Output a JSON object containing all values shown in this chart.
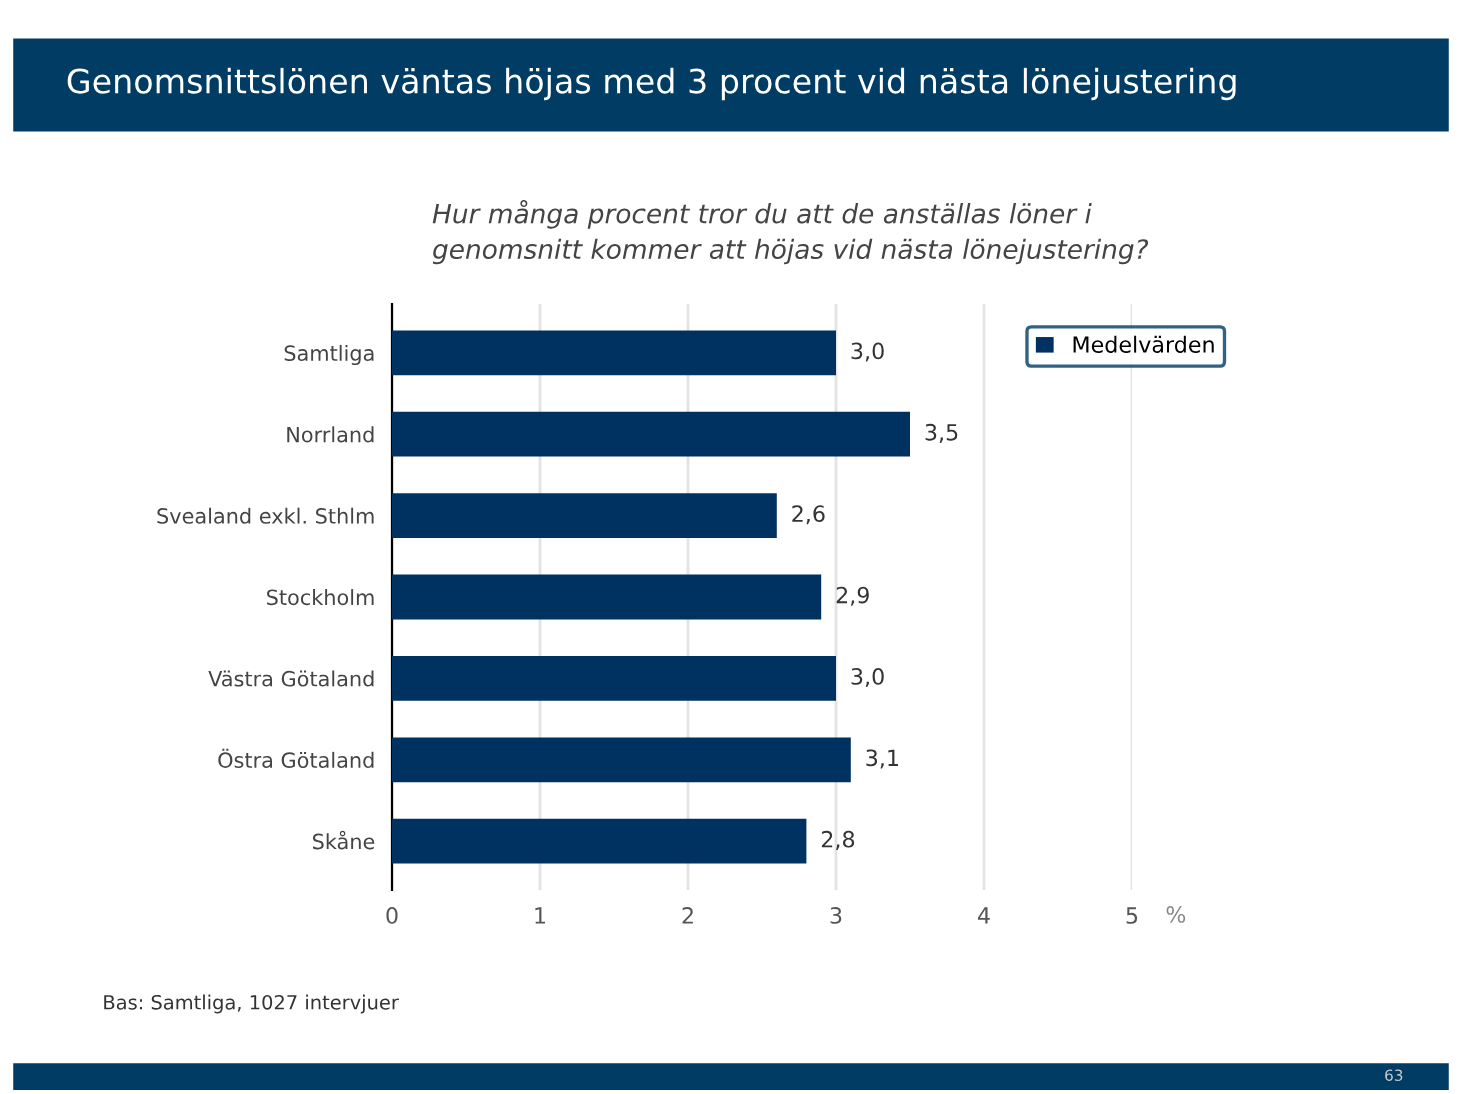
{
  "chart_data": {
    "type": "bar",
    "orientation": "horizontal",
    "title": "Genomsnittslönen väntas höjas med 3 procent vid nästa lönejustering",
    "subtitle": "Hur många procent tror du att de anställas löner i\ngenomsnitt kommer att höjas vid nästa lönejustering?",
    "categories": [
      "Samtliga",
      "Norrland",
      "Svealand exkl. Sthlm",
      "Stockholm",
      "Västra Götaland",
      "Östra Götaland",
      "Skåne"
    ],
    "series": [
      {
        "name": "Medelvärden",
        "color": "#003261",
        "values": [
          3.0,
          3.5,
          2.6,
          2.9,
          3.0,
          3.1,
          2.8
        ],
        "value_labels": [
          "3,0",
          "3,5",
          "2,6",
          "2,9",
          "3,0",
          "3,1",
          "2,8"
        ]
      }
    ],
    "xlim": [
      0,
      5
    ],
    "xticks": [
      0,
      1,
      2,
      3,
      4,
      5
    ],
    "xlabel": "%",
    "grid": "x",
    "legend": "top right",
    "annotations": [
      "Bas: Samtliga, 1027 intervjuer",
      "63"
    ]
  }
}
